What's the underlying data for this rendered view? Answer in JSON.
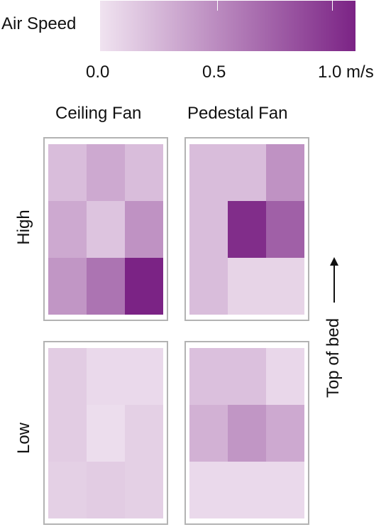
{
  "chart_data": {
    "type": "heatmap",
    "colorbar": {
      "label": "Air Speed",
      "ticks": [
        "0.0",
        "0.5",
        "1.0 m/s"
      ],
      "range": [
        0,
        1.0
      ],
      "color_low": "#f0e3f0",
      "color_high": "#7b2385"
    },
    "columns": [
      "Ceiling Fan",
      "Pedestal Fan"
    ],
    "rows": [
      "High",
      "Low"
    ],
    "side_label": "Top of bed",
    "panels": [
      {
        "column": "Ceiling Fan",
        "row": "High",
        "grid": [
          [
            0.2,
            0.3,
            0.2
          ],
          [
            0.3,
            0.16,
            0.42
          ],
          [
            0.4,
            0.58,
            1.0
          ]
        ]
      },
      {
        "column": "Pedestal Fan",
        "row": "High",
        "grid": [
          [
            0.2,
            0.2,
            0.42
          ],
          [
            0.2,
            0.95,
            0.68
          ],
          [
            0.2,
            0.08,
            0.08
          ]
        ]
      },
      {
        "column": "Ceiling Fan",
        "row": "Low",
        "grid": [
          [
            0.12,
            0.05,
            0.05
          ],
          [
            0.12,
            0.03,
            0.1
          ],
          [
            0.1,
            0.12,
            0.1
          ]
        ]
      },
      {
        "column": "Pedestal Fan",
        "row": "Low",
        "grid": [
          [
            0.18,
            0.18,
            0.06
          ],
          [
            0.26,
            0.4,
            0.3
          ],
          [
            0.05,
            0.05,
            0.05
          ]
        ]
      }
    ]
  }
}
